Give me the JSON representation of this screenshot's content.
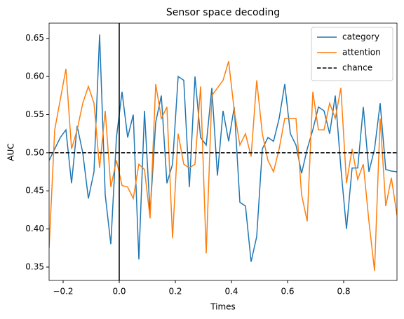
{
  "chart_data": {
    "type": "line",
    "title": "Sensor space decoding",
    "xlabel": "Times",
    "ylabel": "AUC",
    "x": [
      -0.25,
      -0.23,
      -0.21,
      -0.19,
      -0.17,
      -0.15,
      -0.13,
      -0.11,
      -0.09,
      -0.07,
      -0.05,
      -0.03,
      -0.01,
      0.01,
      0.03,
      0.05,
      0.07,
      0.09,
      0.11,
      0.13,
      0.15,
      0.17,
      0.19,
      0.21,
      0.23,
      0.25,
      0.27,
      0.29,
      0.31,
      0.33,
      0.35,
      0.37,
      0.39,
      0.41,
      0.43,
      0.45,
      0.47,
      0.49,
      0.51,
      0.53,
      0.55,
      0.57,
      0.59,
      0.61,
      0.63,
      0.65,
      0.67,
      0.69,
      0.71,
      0.73,
      0.75,
      0.77,
      0.79,
      0.81,
      0.83,
      0.85,
      0.87,
      0.89,
      0.91,
      0.93,
      0.95,
      0.97,
      0.99
    ],
    "series": [
      {
        "name": "category",
        "color": "#1f77b4",
        "values": [
          0.49,
          0.505,
          0.52,
          0.53,
          0.46,
          0.535,
          0.5,
          0.44,
          0.475,
          0.655,
          0.445,
          0.38,
          0.52,
          0.58,
          0.52,
          0.55,
          0.36,
          0.555,
          0.42,
          0.54,
          0.575,
          0.46,
          0.485,
          0.6,
          0.595,
          0.455,
          0.6,
          0.52,
          0.51,
          0.585,
          0.47,
          0.555,
          0.515,
          0.56,
          0.435,
          0.43,
          0.357,
          0.39,
          0.505,
          0.52,
          0.515,
          0.545,
          0.59,
          0.525,
          0.51,
          0.473,
          0.505,
          0.53,
          0.56,
          0.555,
          0.525,
          0.575,
          0.48,
          0.4,
          0.48,
          0.48,
          0.56,
          0.475,
          0.505,
          0.565,
          0.478,
          0.476,
          0.475
        ]
      },
      {
        "name": "attention",
        "color": "#ff7f0e",
        "values": [
          0.375,
          0.53,
          0.57,
          0.61,
          0.505,
          0.53,
          0.565,
          0.587,
          0.565,
          0.48,
          0.555,
          0.455,
          0.49,
          0.457,
          0.455,
          0.44,
          0.485,
          0.478,
          0.414,
          0.59,
          0.545,
          0.56,
          0.388,
          0.525,
          0.485,
          0.48,
          0.485,
          0.587,
          0.368,
          0.575,
          0.585,
          0.595,
          0.62,
          0.555,
          0.51,
          0.525,
          0.495,
          0.595,
          0.525,
          0.49,
          0.475,
          0.505,
          0.545,
          0.545,
          0.545,
          0.445,
          0.41,
          0.58,
          0.53,
          0.53,
          0.565,
          0.545,
          0.585,
          0.46,
          0.505,
          0.465,
          0.485,
          0.41,
          0.345,
          0.545,
          0.43,
          0.467,
          0.418
        ]
      }
    ],
    "reference_lines": [
      {
        "name": "chance",
        "value": 0.5,
        "color": "#000000",
        "style": "dashed"
      }
    ],
    "vline": 0,
    "xlim": [
      -0.25,
      0.99
    ],
    "ylim": [
      0.3325,
      0.67
    ],
    "xticks": [
      {
        "value": -0.2,
        "label": "−0.2"
      },
      {
        "value": 0,
        "label": "0.0"
      },
      0.2,
      0.4,
      0.6,
      0.8
    ],
    "yticks": [
      0.35,
      {
        "value": 0.4,
        "label": "0.40"
      },
      0.45,
      {
        "value": 0.5,
        "label": "0.50"
      },
      0.55,
      {
        "value": 0.6,
        "label": "0.60"
      },
      0.65
    ],
    "legend": "upper right"
  }
}
